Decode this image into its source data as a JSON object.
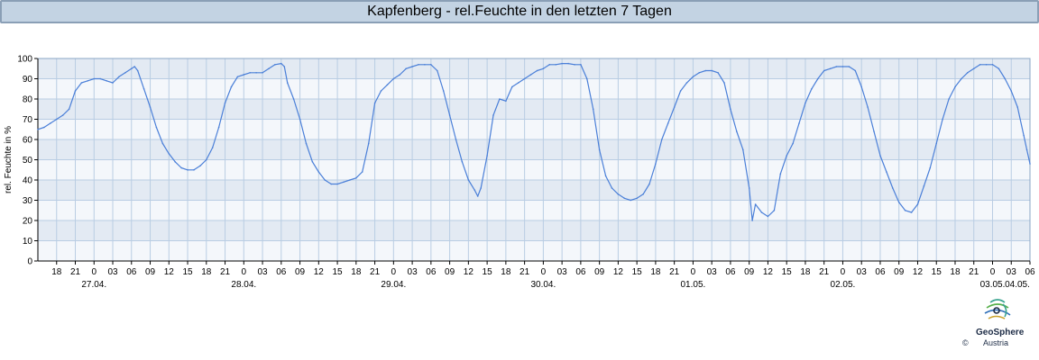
{
  "header": {
    "title": "Kapfenberg - rel.Feuchte in den letzten 7 Tagen"
  },
  "colors": {
    "line": "#4a7fd8",
    "band": "#e3eaf3",
    "band_alt": "#f4f7fb",
    "grid": "#b9cde3",
    "title_bg": "#c3d3e3"
  },
  "logo": {
    "name": "GeoSphere",
    "sub": "Austria",
    "copyright": "©"
  },
  "chart_data": {
    "type": "line",
    "title": "Kapfenberg - rel.Feuchte in den letzten 7 Tagen",
    "ylabel": "rel. Feuchte in %",
    "xlabel": "",
    "ylim": [
      0,
      100
    ],
    "yticks": [
      0,
      10,
      20,
      30,
      40,
      50,
      60,
      70,
      80,
      90,
      100
    ],
    "x_unit": "hours",
    "xlim": [
      15,
      174
    ],
    "hour_ticks": [
      {
        "h": 18,
        "label": "18"
      },
      {
        "h": 21,
        "label": "21"
      },
      {
        "h": 24,
        "label": "0"
      },
      {
        "h": 27,
        "label": "03"
      },
      {
        "h": 30,
        "label": "06"
      },
      {
        "h": 33,
        "label": "09"
      },
      {
        "h": 36,
        "label": "12"
      },
      {
        "h": 39,
        "label": "15"
      },
      {
        "h": 42,
        "label": "18"
      },
      {
        "h": 45,
        "label": "21"
      },
      {
        "h": 48,
        "label": "0"
      },
      {
        "h": 51,
        "label": "03"
      },
      {
        "h": 54,
        "label": "06"
      },
      {
        "h": 57,
        "label": "09"
      },
      {
        "h": 60,
        "label": "12"
      },
      {
        "h": 63,
        "label": "15"
      },
      {
        "h": 66,
        "label": "18"
      },
      {
        "h": 69,
        "label": "21"
      },
      {
        "h": 72,
        "label": "0"
      },
      {
        "h": 75,
        "label": "03"
      },
      {
        "h": 78,
        "label": "06"
      },
      {
        "h": 81,
        "label": "09"
      },
      {
        "h": 84,
        "label": "12"
      },
      {
        "h": 87,
        "label": "15"
      },
      {
        "h": 90,
        "label": "18"
      },
      {
        "h": 93,
        "label": "21"
      },
      {
        "h": 96,
        "label": "0"
      },
      {
        "h": 99,
        "label": "03"
      },
      {
        "h": 102,
        "label": "06"
      },
      {
        "h": 105,
        "label": "09"
      },
      {
        "h": 108,
        "label": "12"
      },
      {
        "h": 111,
        "label": "15"
      },
      {
        "h": 114,
        "label": "18"
      },
      {
        "h": 117,
        "label": "21"
      },
      {
        "h": 120,
        "label": "0"
      },
      {
        "h": 123,
        "label": "03"
      },
      {
        "h": 126,
        "label": "06"
      },
      {
        "h": 129,
        "label": "09"
      },
      {
        "h": 132,
        "label": "12"
      },
      {
        "h": 135,
        "label": "15"
      },
      {
        "h": 138,
        "label": "18"
      },
      {
        "h": 141,
        "label": "21"
      },
      {
        "h": 144,
        "label": "0"
      },
      {
        "h": 147,
        "label": "03"
      },
      {
        "h": 150,
        "label": "06"
      },
      {
        "h": 153,
        "label": "09"
      },
      {
        "h": 156,
        "label": "12"
      },
      {
        "h": 159,
        "label": "15"
      },
      {
        "h": 162,
        "label": "18"
      },
      {
        "h": 165,
        "label": "21"
      },
      {
        "h": 168,
        "label": "0"
      },
      {
        "h": 171,
        "label": "03"
      },
      {
        "h": 174,
        "label": "06"
      }
    ],
    "date_labels": [
      {
        "h": 24,
        "label": "27.04."
      },
      {
        "h": 48,
        "label": "28.04."
      },
      {
        "h": 72,
        "label": "29.04."
      },
      {
        "h": 96,
        "label": "30.04."
      },
      {
        "h": 120,
        "label": "01.05."
      },
      {
        "h": 144,
        "label": "02.05."
      },
      {
        "h": 168,
        "label": "03.05."
      },
      {
        "h": 192,
        "label": "04.05."
      }
    ],
    "grid": true,
    "legend": "none",
    "series": [
      {
        "values": [
          [
            15,
            65
          ],
          [
            16,
            66
          ],
          [
            17,
            68
          ],
          [
            18,
            70
          ],
          [
            19,
            72
          ],
          [
            20,
            75
          ],
          [
            21,
            84
          ],
          [
            22,
            88
          ],
          [
            23,
            89
          ],
          [
            24,
            90
          ],
          [
            25,
            90
          ],
          [
            26,
            89
          ],
          [
            27,
            88
          ],
          [
            28,
            91
          ],
          [
            29,
            93
          ],
          [
            30,
            95
          ],
          [
            30.5,
            96
          ],
          [
            31,
            94
          ],
          [
            32,
            85
          ],
          [
            33,
            76
          ],
          [
            34,
            66
          ],
          [
            35,
            58
          ],
          [
            36,
            53
          ],
          [
            37,
            49
          ],
          [
            38,
            46
          ],
          [
            39,
            45
          ],
          [
            40,
            45
          ],
          [
            41,
            47
          ],
          [
            42,
            50
          ],
          [
            43,
            56
          ],
          [
            44,
            66
          ],
          [
            45,
            78
          ],
          [
            46,
            86
          ],
          [
            47,
            91
          ],
          [
            48,
            92
          ],
          [
            49,
            93
          ],
          [
            50,
            93
          ],
          [
            51,
            93
          ],
          [
            52,
            95
          ],
          [
            53,
            97
          ],
          [
            54,
            97.5
          ],
          [
            54.5,
            96
          ],
          [
            55,
            88
          ],
          [
            56,
            80
          ],
          [
            57,
            70
          ],
          [
            58,
            58
          ],
          [
            59,
            49
          ],
          [
            60,
            44
          ],
          [
            61,
            40
          ],
          [
            62,
            38
          ],
          [
            63,
            38
          ],
          [
            64,
            39
          ],
          [
            65,
            40
          ],
          [
            66,
            41
          ],
          [
            67,
            44
          ],
          [
            68,
            58
          ],
          [
            69,
            78
          ],
          [
            70,
            84
          ],
          [
            71,
            87
          ],
          [
            72,
            90
          ],
          [
            73,
            92
          ],
          [
            74,
            95
          ],
          [
            75,
            96
          ],
          [
            76,
            97
          ],
          [
            77,
            97
          ],
          [
            78,
            97
          ],
          [
            79,
            94
          ],
          [
            80,
            84
          ],
          [
            81,
            72
          ],
          [
            82,
            60
          ],
          [
            83,
            49
          ],
          [
            84,
            40
          ],
          [
            85,
            35
          ],
          [
            85.5,
            32
          ],
          [
            86,
            36
          ],
          [
            87,
            52
          ],
          [
            88,
            72
          ],
          [
            89,
            80
          ],
          [
            90,
            79
          ],
          [
            91,
            86
          ],
          [
            92,
            88
          ],
          [
            93,
            90
          ],
          [
            94,
            92
          ],
          [
            95,
            94
          ],
          [
            96,
            95
          ],
          [
            97,
            97
          ],
          [
            98,
            97
          ],
          [
            99,
            97.5
          ],
          [
            100,
            97.5
          ],
          [
            101,
            97
          ],
          [
            102,
            97
          ],
          [
            103,
            90
          ],
          [
            104,
            75
          ],
          [
            105,
            55
          ],
          [
            106,
            42
          ],
          [
            107,
            36
          ],
          [
            108,
            33
          ],
          [
            109,
            31
          ],
          [
            110,
            30
          ],
          [
            111,
            31
          ],
          [
            112,
            33
          ],
          [
            113,
            38
          ],
          [
            114,
            48
          ],
          [
            115,
            60
          ],
          [
            116,
            68
          ],
          [
            117,
            76
          ],
          [
            118,
            84
          ],
          [
            119,
            88
          ],
          [
            120,
            91
          ],
          [
            121,
            93
          ],
          [
            122,
            94
          ],
          [
            123,
            94
          ],
          [
            124,
            93
          ],
          [
            125,
            88
          ],
          [
            126,
            75
          ],
          [
            127,
            64
          ],
          [
            128,
            55
          ],
          [
            129,
            36
          ],
          [
            129.5,
            20
          ],
          [
            130,
            28
          ],
          [
            131,
            24
          ],
          [
            132,
            22
          ],
          [
            133,
            25
          ],
          [
            134,
            43
          ],
          [
            135,
            52
          ],
          [
            136,
            58
          ],
          [
            137,
            68
          ],
          [
            138,
            78
          ],
          [
            139,
            85
          ],
          [
            140,
            90
          ],
          [
            141,
            94
          ],
          [
            142,
            95
          ],
          [
            143,
            96
          ],
          [
            144,
            96
          ],
          [
            145,
            96
          ],
          [
            146,
            94
          ],
          [
            147,
            86
          ],
          [
            148,
            76
          ],
          [
            149,
            64
          ],
          [
            150,
            52
          ],
          [
            151,
            44
          ],
          [
            152,
            36
          ],
          [
            153,
            29
          ],
          [
            154,
            25
          ],
          [
            155,
            24
          ],
          [
            156,
            28
          ],
          [
            157,
            37
          ],
          [
            158,
            46
          ],
          [
            159,
            58
          ],
          [
            160,
            70
          ],
          [
            161,
            80
          ],
          [
            162,
            86
          ],
          [
            163,
            90
          ],
          [
            164,
            93
          ],
          [
            165,
            95
          ],
          [
            166,
            97
          ],
          [
            167,
            97
          ],
          [
            168,
            97
          ],
          [
            169,
            95
          ],
          [
            170,
            90
          ],
          [
            171,
            84
          ],
          [
            172,
            76
          ],
          [
            173,
            62
          ],
          [
            173.5,
            55
          ],
          [
            174,
            48
          ]
        ]
      }
    ]
  }
}
